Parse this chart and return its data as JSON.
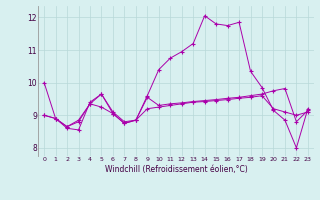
{
  "xlabel": "Windchill (Refroidissement éolien,°C)",
  "bg_color": "#d8f0f0",
  "grid_color": "#b8d8d8",
  "line_color": "#aa00aa",
  "xlim": [
    -0.5,
    23.5
  ],
  "ylim": [
    7.75,
    12.35
  ],
  "xticks": [
    0,
    1,
    2,
    3,
    4,
    5,
    6,
    7,
    8,
    9,
    10,
    11,
    12,
    13,
    14,
    15,
    16,
    17,
    18,
    19,
    20,
    21,
    22,
    23
  ],
  "yticks": [
    8,
    9,
    10,
    11,
    12
  ],
  "series": [
    [
      10.0,
      8.9,
      8.6,
      8.55,
      9.4,
      9.65,
      9.1,
      8.8,
      8.85,
      9.6,
      10.4,
      10.75,
      10.95,
      11.2,
      12.05,
      11.8,
      11.75,
      11.85,
      10.35,
      9.85,
      9.15,
      8.85,
      8.0,
      9.2
    ],
    [
      9.0,
      8.9,
      8.65,
      8.85,
      9.35,
      9.25,
      9.05,
      8.75,
      8.85,
      9.2,
      9.25,
      9.3,
      9.35,
      9.4,
      9.42,
      9.45,
      9.48,
      9.52,
      9.55,
      9.6,
      9.2,
      9.1,
      9.0,
      9.1
    ],
    [
      9.0,
      8.9,
      8.65,
      8.8,
      9.35,
      9.65,
      9.05,
      8.75,
      8.85,
      9.55,
      9.3,
      9.35,
      9.38,
      9.42,
      9.45,
      9.48,
      9.52,
      9.55,
      9.6,
      9.65,
      9.75,
      9.82,
      8.8,
      9.15
    ]
  ]
}
